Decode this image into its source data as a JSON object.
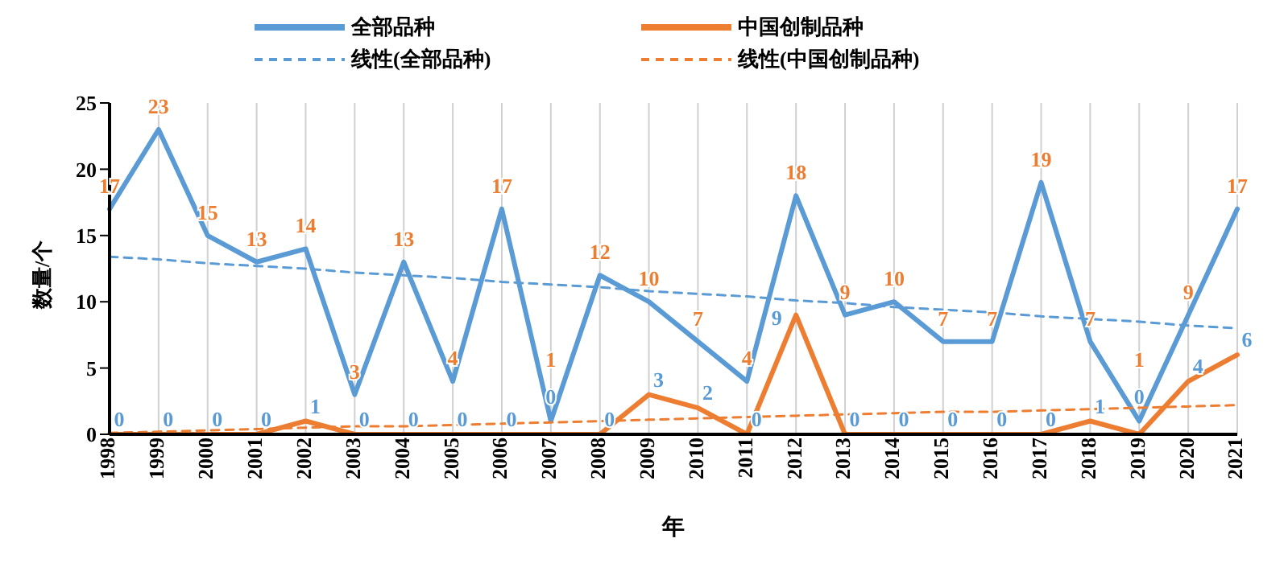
{
  "chart_data": {
    "type": "line",
    "xlabel": "年",
    "ylabel": "数量/个",
    "categories": [
      "1998",
      "1999",
      "2000",
      "2001",
      "2002",
      "2003",
      "2004",
      "2005",
      "2006",
      "2007",
      "2008",
      "2009",
      "2010",
      "2011",
      "2012",
      "2013",
      "2014",
      "2015",
      "2016",
      "2017",
      "2018",
      "2019",
      "2020",
      "2021"
    ],
    "series": [
      {
        "name": "全部品种",
        "color": "#5b9bd5",
        "values": [
          17,
          23,
          15,
          13,
          14,
          3,
          13,
          4,
          17,
          1,
          12,
          10,
          7,
          4,
          18,
          9,
          10,
          7,
          7,
          19,
          7,
          1,
          9,
          17
        ],
        "data_labels": true
      },
      {
        "name": "中国创制品种",
        "color": "#ed7d31",
        "values": [
          0,
          0,
          0,
          0,
          1,
          0,
          0,
          0,
          0,
          0,
          0,
          3,
          2,
          0,
          9,
          0,
          0,
          0,
          0,
          0,
          1,
          0,
          4,
          6
        ],
        "data_labels": true
      },
      {
        "name": "线性(全部品种)",
        "color": "#5b9bd5",
        "values": [
          13.4,
          13.2,
          12.9,
          12.7,
          12.5,
          12.2,
          12.0,
          11.8,
          11.5,
          11.3,
          11.1,
          10.8,
          10.6,
          10.4,
          10.1,
          9.9,
          9.6,
          9.4,
          9.2,
          8.9,
          8.7,
          8.5,
          8.2,
          8.0
        ],
        "line_style": "dashed"
      },
      {
        "name": "线性(中国创制品种)",
        "color": "#ed7d31",
        "values": [
          0.1,
          0.2,
          0.3,
          0.4,
          0.5,
          0.6,
          0.6,
          0.7,
          0.8,
          0.9,
          1.0,
          1.1,
          1.2,
          1.3,
          1.4,
          1.5,
          1.6,
          1.7,
          1.7,
          1.8,
          1.9,
          2.0,
          2.1,
          2.2
        ],
        "line_style": "dashed"
      }
    ],
    "ylim": [
      0,
      25
    ],
    "yticks": [
      0,
      5,
      10,
      15,
      20,
      25
    ],
    "grid": "x",
    "legend": "top",
    "marker": "none"
  }
}
